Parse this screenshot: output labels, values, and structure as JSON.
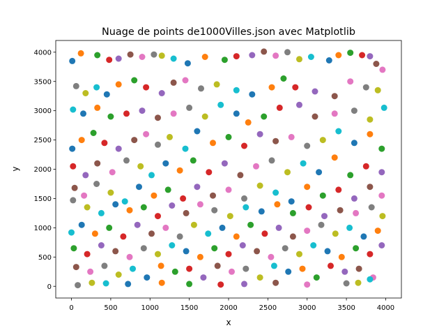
{
  "chart_data": {
    "type": "scatter",
    "title": "Nuage de points de1000Villes.json avec Matplotlib",
    "xlabel": "x",
    "ylabel": "y",
    "xlim": [
      -200,
      4200
    ],
    "ylim": [
      -200,
      4200
    ],
    "xticks": [
      0,
      500,
      1000,
      1500,
      2000,
      2500,
      3000,
      3500,
      4000
    ],
    "yticks": [
      0,
      500,
      1000,
      1500,
      2000,
      2500,
      3000,
      3500,
      4000
    ],
    "grid": false,
    "legend": "none",
    "palette": [
      "#1f77b4",
      "#ff7f0e",
      "#2ca02c",
      "#d62728",
      "#9467bd",
      "#8c564b",
      "#e377c2",
      "#7f7f7f",
      "#bcbd22",
      "#17becf"
    ],
    "points": [
      [
        10,
        3850
      ],
      [
        120,
        3980
      ],
      [
        330,
        3950
      ],
      [
        480,
        3870
      ],
      [
        600,
        3890
      ],
      [
        750,
        3960
      ],
      [
        900,
        3920
      ],
      [
        1050,
        3960
      ],
      [
        1150,
        3940
      ],
      [
        1300,
        3890
      ],
      [
        1480,
        3810
      ],
      [
        1700,
        3920
      ],
      [
        1950,
        3870
      ],
      [
        2100,
        3930
      ],
      [
        2300,
        3950
      ],
      [
        2450,
        4010
      ],
      [
        2600,
        3940
      ],
      [
        2750,
        4000
      ],
      [
        2900,
        3880
      ],
      [
        3050,
        3920
      ],
      [
        3280,
        3860
      ],
      [
        3400,
        3950
      ],
      [
        3550,
        3990
      ],
      [
        3700,
        3950
      ],
      [
        3800,
        3930
      ],
      [
        3880,
        3800
      ],
      [
        3960,
        3700
      ],
      [
        60,
        3420
      ],
      [
        180,
        3300
      ],
      [
        320,
        3400
      ],
      [
        450,
        3280
      ],
      [
        600,
        3450
      ],
      [
        800,
        3520
      ],
      [
        950,
        3400
      ],
      [
        1150,
        3300
      ],
      [
        1300,
        3480
      ],
      [
        1450,
        3520
      ],
      [
        1650,
        3380
      ],
      [
        1850,
        3450
      ],
      [
        2100,
        3350
      ],
      [
        2300,
        3280
      ],
      [
        2550,
        3400
      ],
      [
        2700,
        3550
      ],
      [
        2850,
        3400
      ],
      [
        3100,
        3330
      ],
      [
        3350,
        3250
      ],
      [
        3550,
        3500
      ],
      [
        3750,
        3400
      ],
      [
        3900,
        3350
      ],
      [
        20,
        3020
      ],
      [
        150,
        2950
      ],
      [
        330,
        3050
      ],
      [
        500,
        2900
      ],
      [
        700,
        2950
      ],
      [
        900,
        3000
      ],
      [
        1100,
        2880
      ],
      [
        1300,
        2950
      ],
      [
        1500,
        3050
      ],
      [
        1700,
        2900
      ],
      [
        1900,
        3100
      ],
      [
        2100,
        2950
      ],
      [
        2250,
        2800
      ],
      [
        2450,
        2900
      ],
      [
        2650,
        3050
      ],
      [
        2900,
        3100
      ],
      [
        3100,
        2900
      ],
      [
        3350,
        2950
      ],
      [
        3600,
        3000
      ],
      [
        3800,
        2850
      ],
      [
        3980,
        3050
      ],
      [
        10,
        2350
      ],
      [
        130,
        2500
      ],
      [
        280,
        2620
      ],
      [
        420,
        2450
      ],
      [
        600,
        2350
      ],
      [
        800,
        2500
      ],
      [
        950,
        2600
      ],
      [
        1100,
        2420
      ],
      [
        1250,
        2550
      ],
      [
        1450,
        2350
      ],
      [
        1600,
        2650
      ],
      [
        1800,
        2450
      ],
      [
        2000,
        2550
      ],
      [
        2200,
        2400
      ],
      [
        2400,
        2600
      ],
      [
        2600,
        2480
      ],
      [
        2800,
        2550
      ],
      [
        3000,
        2400
      ],
      [
        3200,
        2500
      ],
      [
        3400,
        2650
      ],
      [
        3600,
        2450
      ],
      [
        3800,
        2600
      ],
      [
        3950,
        2350
      ],
      [
        20,
        2050
      ],
      [
        180,
        1900
      ],
      [
        330,
        2100
      ],
      [
        520,
        1950
      ],
      [
        700,
        2150
      ],
      [
        880,
        2050
      ],
      [
        1020,
        1900
      ],
      [
        1200,
        2100
      ],
      [
        1380,
        1980
      ],
      [
        1550,
        2150
      ],
      [
        1750,
        1950
      ],
      [
        1950,
        2100
      ],
      [
        2150,
        1900
      ],
      [
        2350,
        2050
      ],
      [
        2550,
        2150
      ],
      [
        2750,
        1950
      ],
      [
        2950,
        2100
      ],
      [
        3150,
        1950
      ],
      [
        3350,
        2200
      ],
      [
        3550,
        1900
      ],
      [
        3750,
        2050
      ],
      [
        3950,
        1950
      ],
      [
        40,
        1680
      ],
      [
        160,
        1550
      ],
      [
        320,
        1750
      ],
      [
        500,
        1600
      ],
      [
        680,
        1450
      ],
      [
        860,
        1700
      ],
      [
        1050,
        1550
      ],
      [
        1230,
        1650
      ],
      [
        1420,
        1500
      ],
      [
        1600,
        1700
      ],
      [
        1800,
        1550
      ],
      [
        2000,
        1650
      ],
      [
        2200,
        1500
      ],
      [
        2400,
        1720
      ],
      [
        2600,
        1600
      ],
      [
        2800,
        1450
      ],
      [
        3000,
        1700
      ],
      [
        3200,
        1550
      ],
      [
        3400,
        1650
      ],
      [
        3600,
        1500
      ],
      [
        3800,
        1700
      ],
      [
        3950,
        1550
      ],
      [
        20,
        1470
      ],
      [
        200,
        1350
      ],
      [
        380,
        1250
      ],
      [
        560,
        1400
      ],
      [
        740,
        1300
      ],
      [
        920,
        1350
      ],
      [
        1100,
        1200
      ],
      [
        1280,
        1380
      ],
      [
        1460,
        1250
      ],
      [
        1640,
        1400
      ],
      [
        1820,
        1300
      ],
      [
        2020,
        1200
      ],
      [
        2220,
        1350
      ],
      [
        2420,
        1280
      ],
      [
        2620,
        1400
      ],
      [
        2820,
        1250
      ],
      [
        3020,
        1350
      ],
      [
        3220,
        1200
      ],
      [
        3420,
        1300
      ],
      [
        3620,
        1250
      ],
      [
        3820,
        1350
      ],
      [
        3960,
        1200
      ],
      [
        0,
        920
      ],
      [
        130,
        1050
      ],
      [
        300,
        900
      ],
      [
        480,
        1000
      ],
      [
        660,
        850
      ],
      [
        840,
        1050
      ],
      [
        1020,
        900
      ],
      [
        1200,
        1000
      ],
      [
        1380,
        850
      ],
      [
        1560,
        1050
      ],
      [
        1740,
        900
      ],
      [
        1920,
        1000
      ],
      [
        2100,
        850
      ],
      [
        2280,
        1050
      ],
      [
        2460,
        900
      ],
      [
        2640,
        1000
      ],
      [
        2820,
        850
      ],
      [
        3000,
        950
      ],
      [
        3180,
        1050
      ],
      [
        3360,
        900
      ],
      [
        3540,
        1000
      ],
      [
        3720,
        850
      ],
      [
        3900,
        950
      ],
      [
        30,
        650
      ],
      [
        200,
        550
      ],
      [
        380,
        700
      ],
      [
        560,
        600
      ],
      [
        740,
        500
      ],
      [
        920,
        650
      ],
      [
        1100,
        550
      ],
      [
        1280,
        700
      ],
      [
        1460,
        600
      ],
      [
        1640,
        500
      ],
      [
        1820,
        650
      ],
      [
        2000,
        550
      ],
      [
        2180,
        700
      ],
      [
        2360,
        600
      ],
      [
        2540,
        500
      ],
      [
        2720,
        650
      ],
      [
        2900,
        550
      ],
      [
        3080,
        700
      ],
      [
        3260,
        600
      ],
      [
        3440,
        500
      ],
      [
        3620,
        650
      ],
      [
        3800,
        550
      ],
      [
        3950,
        700
      ],
      [
        60,
        330
      ],
      [
        240,
        250
      ],
      [
        420,
        350
      ],
      [
        600,
        200
      ],
      [
        780,
        300
      ],
      [
        960,
        150
      ],
      [
        1140,
        350
      ],
      [
        1320,
        250
      ],
      [
        1500,
        300
      ],
      [
        1680,
        150
      ],
      [
        1860,
        350
      ],
      [
        2040,
        250
      ],
      [
        2220,
        300
      ],
      [
        2400,
        150
      ],
      [
        2580,
        350
      ],
      [
        2760,
        250
      ],
      [
        2940,
        300
      ],
      [
        3120,
        150
      ],
      [
        3300,
        350
      ],
      [
        3480,
        250
      ],
      [
        3660,
        300
      ],
      [
        3840,
        150
      ],
      [
        80,
        20
      ],
      [
        260,
        60
      ],
      [
        440,
        50
      ],
      [
        720,
        40
      ],
      [
        1150,
        60
      ],
      [
        1500,
        40
      ],
      [
        1900,
        30
      ],
      [
        2200,
        40
      ],
      [
        2600,
        60
      ],
      [
        3000,
        30
      ],
      [
        3500,
        50
      ],
      [
        3650,
        60
      ],
      [
        3800,
        120
      ]
    ]
  }
}
